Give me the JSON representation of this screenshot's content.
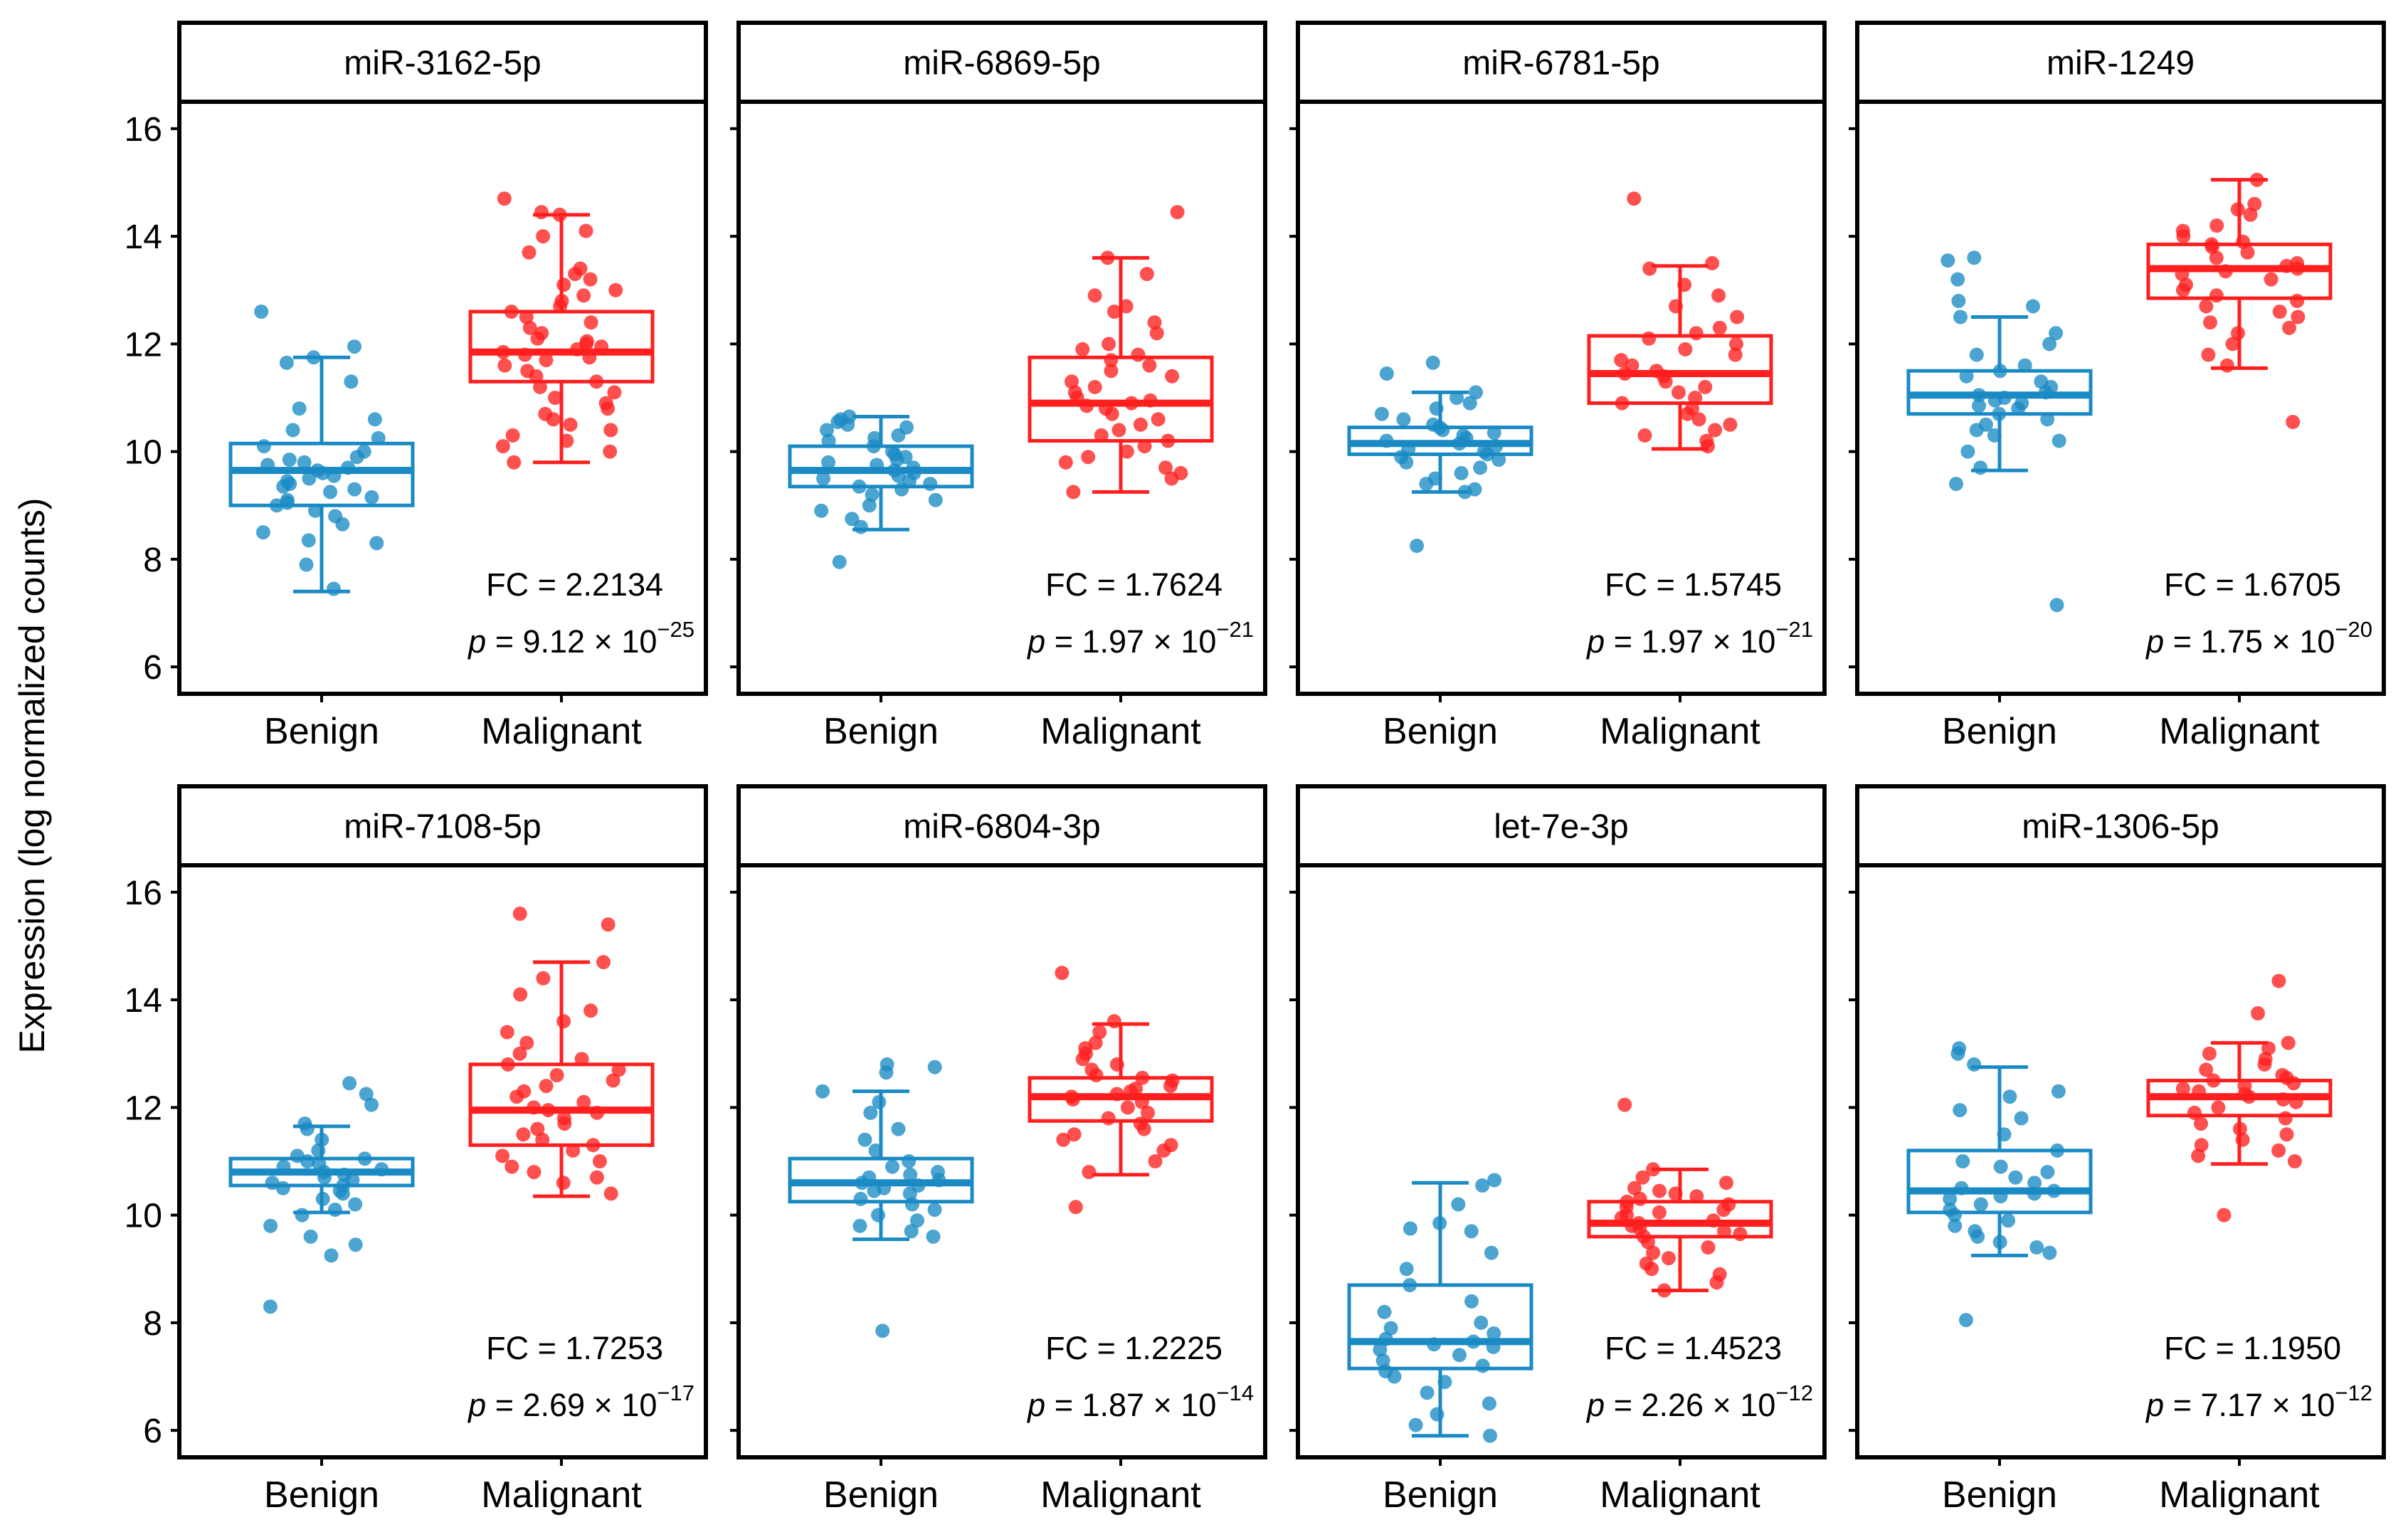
{
  "y_axis_label": "Expression (log normalized counts)",
  "colors": {
    "benign": "#1a8ac4",
    "malignant": "#ff1f1f"
  },
  "chart_data": {
    "type": "boxplot",
    "categories": [
      "Benign",
      "Malignant"
    ],
    "ylim": [
      5.5,
      16.5
    ],
    "yticks": [
      6,
      8,
      10,
      12,
      14,
      16
    ],
    "ylabel": "Expression (log normalized counts)",
    "panels": [
      {
        "name": "miR-3162-5p",
        "fc_label": "FC = 2.2134",
        "p_prefix": "= 9.12 × 10",
        "p_exp": "−25",
        "boxes": [
          {
            "group": "Benign",
            "min": 7.4,
            "q1": 9.0,
            "median": 9.65,
            "q3": 10.15,
            "max": 11.75,
            "points": [
              12.6,
              11.95,
              11.75,
              11.65,
              11.3,
              10.8,
              10.6,
              10.4,
              10.25,
              10.1,
              10.0,
              9.9,
              9.85,
              9.8,
              9.75,
              9.7,
              9.65,
              9.6,
              9.55,
              9.5,
              9.45,
              9.4,
              9.35,
              9.3,
              9.25,
              9.15,
              9.1,
              9.05,
              9.0,
              8.9,
              8.8,
              8.65,
              8.5,
              8.35,
              8.3,
              7.9,
              7.45
            ]
          },
          {
            "group": "Malignant",
            "min": 9.8,
            "q1": 11.3,
            "median": 11.85,
            "q3": 12.6,
            "max": 14.4,
            "points": [
              14.7,
              14.45,
              14.4,
              14.1,
              14.0,
              13.7,
              13.4,
              13.3,
              13.2,
              13.1,
              13.0,
              12.9,
              12.8,
              12.7,
              12.6,
              12.5,
              12.4,
              12.3,
              12.2,
              12.1,
              12.05,
              12.0,
              11.95,
              11.9,
              11.85,
              11.8,
              11.75,
              11.7,
              11.6,
              11.5,
              11.4,
              11.3,
              11.2,
              11.1,
              11.0,
              10.9,
              10.8,
              10.7,
              10.6,
              10.5,
              10.4,
              10.3,
              10.2,
              10.1,
              10.0,
              9.8
            ]
          }
        ]
      },
      {
        "name": "miR-6869-5p",
        "fc_label": "FC = 1.7624",
        "p_prefix": "= 1.97 × 10",
        "p_exp": "−21",
        "boxes": [
          {
            "group": "Benign",
            "min": 8.55,
            "q1": 9.35,
            "median": 9.65,
            "q3": 10.1,
            "max": 10.65,
            "points": [
              10.65,
              10.6,
              10.55,
              10.5,
              10.45,
              10.4,
              10.3,
              10.25,
              10.2,
              10.1,
              10.0,
              9.95,
              9.9,
              9.85,
              9.8,
              9.75,
              9.7,
              9.65,
              9.6,
              9.55,
              9.5,
              9.45,
              9.4,
              9.35,
              9.3,
              9.2,
              9.1,
              9.0,
              8.9,
              8.75,
              8.6,
              7.95
            ]
          },
          {
            "group": "Malignant",
            "min": 9.25,
            "q1": 10.2,
            "median": 10.9,
            "q3": 11.75,
            "max": 13.6,
            "points": [
              14.45,
              13.6,
              13.3,
              12.9,
              12.7,
              12.6,
              12.4,
              12.2,
              12.0,
              11.9,
              11.8,
              11.7,
              11.6,
              11.5,
              11.4,
              11.3,
              11.2,
              11.1,
              11.0,
              10.95,
              10.9,
              10.85,
              10.8,
              10.7,
              10.6,
              10.5,
              10.4,
              10.3,
              10.2,
              10.1,
              10.0,
              9.9,
              9.8,
              9.7,
              9.6,
              9.5,
              9.25
            ]
          }
        ]
      },
      {
        "name": "miR-6781-5p",
        "fc_label": "FC = 1.5745",
        "p_prefix": "= 1.97 × 10",
        "p_exp": "−21",
        "boxes": [
          {
            "group": "Benign",
            "min": 9.25,
            "q1": 9.95,
            "median": 10.15,
            "q3": 10.45,
            "max": 11.1,
            "points": [
              11.65,
              11.45,
              11.1,
              11.0,
              10.9,
              10.8,
              10.7,
              10.6,
              10.5,
              10.45,
              10.4,
              10.35,
              10.3,
              10.25,
              10.2,
              10.15,
              10.1,
              10.05,
              10.0,
              9.95,
              9.9,
              9.85,
              9.8,
              9.7,
              9.6,
              9.5,
              9.4,
              9.3,
              9.25,
              8.25
            ]
          },
          {
            "group": "Malignant",
            "min": 10.05,
            "q1": 10.9,
            "median": 11.45,
            "q3": 12.15,
            "max": 13.45,
            "points": [
              14.7,
              13.5,
              13.4,
              13.1,
              12.9,
              12.7,
              12.5,
              12.3,
              12.2,
              12.1,
              12.0,
              11.9,
              11.8,
              11.7,
              11.6,
              11.5,
              11.45,
              11.4,
              11.3,
              11.2,
              11.1,
              11.0,
              10.9,
              10.8,
              10.7,
              10.6,
              10.5,
              10.4,
              10.3,
              10.2,
              10.1
            ]
          }
        ]
      },
      {
        "name": "miR-1249",
        "fc_label": "FC = 1.6705",
        "p_prefix": "= 1.75 × 10",
        "p_exp": "−20",
        "boxes": [
          {
            "group": "Benign",
            "min": 9.65,
            "q1": 10.7,
            "median": 11.05,
            "q3": 11.5,
            "max": 12.5,
            "points": [
              13.6,
              13.55,
              13.2,
              12.8,
              12.7,
              12.5,
              12.2,
              12.0,
              11.8,
              11.6,
              11.5,
              11.4,
              11.3,
              11.2,
              11.1,
              11.05,
              11.0,
              10.95,
              10.9,
              10.85,
              10.8,
              10.7,
              10.6,
              10.5,
              10.4,
              10.3,
              10.2,
              10.0,
              9.7,
              9.4,
              7.15
            ]
          },
          {
            "group": "Malignant",
            "min": 11.55,
            "q1": 12.85,
            "median": 13.4,
            "q3": 13.85,
            "max": 15.05,
            "points": [
              15.05,
              14.6,
              14.5,
              14.4,
              14.2,
              14.1,
              14.0,
              13.9,
              13.85,
              13.8,
              13.7,
              13.6,
              13.5,
              13.45,
              13.4,
              13.35,
              13.3,
              13.2,
              13.1,
              13.0,
              12.9,
              12.8,
              12.7,
              12.6,
              12.5,
              12.4,
              12.3,
              12.2,
              12.0,
              11.8,
              11.6,
              10.55
            ]
          }
        ]
      },
      {
        "name": "miR-7108-5p",
        "fc_label": "FC = 1.7253",
        "p_prefix": "= 2.69 × 10",
        "p_exp": "−17",
        "boxes": [
          {
            "group": "Benign",
            "min": 10.05,
            "q1": 10.55,
            "median": 10.8,
            "q3": 11.05,
            "max": 11.65,
            "points": [
              12.45,
              12.25,
              12.05,
              11.7,
              11.6,
              11.4,
              11.2,
              11.1,
              11.05,
              11.0,
              10.95,
              10.9,
              10.85,
              10.8,
              10.75,
              10.7,
              10.65,
              10.6,
              10.55,
              10.5,
              10.45,
              10.4,
              10.3,
              10.2,
              10.1,
              10.0,
              9.8,
              9.6,
              9.45,
              9.25,
              8.3
            ]
          },
          {
            "group": "Malignant",
            "min": 10.35,
            "q1": 11.3,
            "median": 11.95,
            "q3": 12.8,
            "max": 14.7,
            "points": [
              15.6,
              15.4,
              14.7,
              14.4,
              14.1,
              13.8,
              13.6,
              13.4,
              13.2,
              13.0,
              12.9,
              12.8,
              12.7,
              12.6,
              12.5,
              12.4,
              12.3,
              12.2,
              12.1,
              12.0,
              11.95,
              11.9,
              11.8,
              11.7,
              11.6,
              11.5,
              11.4,
              11.3,
              11.2,
              11.1,
              11.0,
              10.9,
              10.8,
              10.7,
              10.6,
              10.4
            ]
          }
        ]
      },
      {
        "name": "miR-6804-3p",
        "fc_label": "FC = 1.2225",
        "p_prefix": "= 1.87 × 10",
        "p_exp": "−14",
        "boxes": [
          {
            "group": "Benign",
            "min": 9.55,
            "q1": 10.25,
            "median": 10.6,
            "q3": 11.05,
            "max": 12.3,
            "points": [
              12.8,
              12.75,
              12.65,
              12.3,
              12.1,
              11.9,
              11.6,
              11.4,
              11.2,
              11.0,
              10.9,
              10.8,
              10.75,
              10.7,
              10.65,
              10.6,
              10.55,
              10.5,
              10.45,
              10.4,
              10.3,
              10.2,
              10.1,
              10.0,
              9.9,
              9.8,
              9.7,
              9.6,
              7.85
            ]
          },
          {
            "group": "Malignant",
            "min": 10.75,
            "q1": 11.75,
            "median": 12.2,
            "q3": 12.55,
            "max": 13.55,
            "points": [
              14.5,
              13.6,
              13.4,
              13.2,
              13.1,
              13.0,
              12.9,
              12.8,
              12.7,
              12.6,
              12.55,
              12.5,
              12.4,
              12.35,
              12.3,
              12.25,
              12.2,
              12.15,
              12.1,
              12.0,
              11.9,
              11.8,
              11.7,
              11.6,
              11.5,
              11.4,
              11.3,
              11.2,
              11.0,
              10.8,
              10.15
            ]
          }
        ]
      },
      {
        "name": "let-7e-3p",
        "fc_label": "FC = 1.4523",
        "p_prefix": "= 2.26 × 10",
        "p_exp": "−12",
        "boxes": [
          {
            "group": "Benign",
            "min": 5.9,
            "q1": 7.15,
            "median": 7.65,
            "q3": 8.7,
            "max": 10.6,
            "points": [
              10.65,
              10.55,
              10.2,
              9.85,
              9.75,
              9.7,
              9.3,
              9.0,
              8.7,
              8.4,
              8.2,
              8.0,
              7.9,
              7.8,
              7.7,
              7.65,
              7.6,
              7.55,
              7.5,
              7.4,
              7.3,
              7.2,
              7.1,
              7.0,
              6.9,
              6.7,
              6.5,
              6.3,
              6.1,
              5.9
            ]
          },
          {
            "group": "Malignant",
            "min": 8.6,
            "q1": 9.6,
            "median": 9.85,
            "q3": 10.25,
            "max": 10.85,
            "points": [
              12.05,
              10.85,
              10.7,
              10.6,
              10.5,
              10.45,
              10.4,
              10.35,
              10.3,
              10.25,
              10.2,
              10.15,
              10.1,
              10.05,
              10.0,
              9.95,
              9.9,
              9.85,
              9.8,
              9.75,
              9.7,
              9.65,
              9.6,
              9.5,
              9.4,
              9.3,
              9.2,
              9.1,
              9.0,
              8.9,
              8.75,
              8.6
            ]
          }
        ]
      },
      {
        "name": "miR-1306-5p",
        "fc_label": "FC = 1.1950",
        "p_prefix": "= 7.17 × 10",
        "p_exp": "−12",
        "boxes": [
          {
            "group": "Benign",
            "min": 9.25,
            "q1": 10.05,
            "median": 10.45,
            "q3": 11.2,
            "max": 12.75,
            "points": [
              13.1,
              13.0,
              12.8,
              12.3,
              12.2,
              11.95,
              11.8,
              11.5,
              11.2,
              11.0,
              10.9,
              10.8,
              10.7,
              10.6,
              10.5,
              10.45,
              10.4,
              10.35,
              10.3,
              10.2,
              10.1,
              10.0,
              9.9,
              9.8,
              9.7,
              9.6,
              9.5,
              9.4,
              9.3,
              8.05
            ]
          },
          {
            "group": "Malignant",
            "min": 10.95,
            "q1": 11.85,
            "median": 12.2,
            "q3": 12.5,
            "max": 13.2,
            "points": [
              14.35,
              13.75,
              13.2,
              13.1,
              13.0,
              12.9,
              12.8,
              12.7,
              12.6,
              12.55,
              12.5,
              12.45,
              12.4,
              12.35,
              12.3,
              12.25,
              12.2,
              12.15,
              12.1,
              12.0,
              11.9,
              11.8,
              11.7,
              11.6,
              11.5,
              11.4,
              11.3,
              11.2,
              11.1,
              11.0,
              10.0
            ]
          }
        ]
      }
    ]
  }
}
